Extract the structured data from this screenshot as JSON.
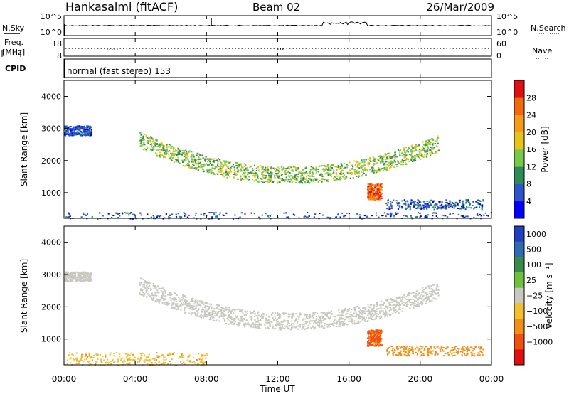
{
  "header": {
    "station": "Hankasalmi (fitACF)",
    "beam": "Beam 02",
    "date": "26/Mar/2009"
  },
  "noise_panel": {
    "left_label": "N.Sky",
    "right_label": "N.Search",
    "left_ticks": [
      "10^5",
      "10^0"
    ],
    "right_ticks": [
      "10^5",
      "10^0"
    ]
  },
  "freq_panel": {
    "left_label_1": "Freq.",
    "left_label_2": "[MHz]",
    "left_ticks": [
      "18",
      "8"
    ],
    "right_label": "Nave",
    "right_ticks": [
      "60",
      "0"
    ],
    "dotted_level": 12.3
  },
  "cpid_panel": {
    "label": "CPID",
    "text": "normal (fast stereo) 153"
  },
  "chart_data": [
    {
      "type": "heatmap",
      "name": "power",
      "ylabel": "Slant Range [km]",
      "xlabel": "",
      "yticks": [
        "1000",
        "2000",
        "3000",
        "4000"
      ],
      "ylim": [
        200,
        4500
      ],
      "xlim": [
        0,
        24
      ],
      "colorbar": {
        "label": "Power [dB]",
        "ticks": [
          "4",
          "8",
          "12",
          "16",
          "20",
          "24",
          "28"
        ],
        "colors": [
          "#0000ff",
          "#2b55c8",
          "#2e8b57",
          "#78c84a",
          "#e6c21a",
          "#f59a1a",
          "#f26a10",
          "#e01010"
        ]
      },
      "echo_features": [
        {
          "region": "main arc",
          "t_start": 4.2,
          "t_end": 21.0,
          "range_km": [
            1300,
            2600
          ],
          "level_db": 14
        },
        {
          "region": "far range",
          "t_start": 0.0,
          "t_end": 1.5,
          "range_km": [
            2800,
            3100
          ],
          "level_db": 6
        },
        {
          "region": "near range",
          "t_start": 0.0,
          "t_end": 24.0,
          "range_km": [
            200,
            400
          ],
          "level_db": 6
        },
        {
          "region": "patch",
          "t_start": 17.0,
          "t_end": 17.8,
          "range_km": [
            800,
            1300
          ],
          "level_db": 26
        },
        {
          "region": "tail",
          "t_start": 18.0,
          "t_end": 23.5,
          "range_km": [
            500,
            800
          ],
          "level_db": 6
        }
      ]
    },
    {
      "type": "heatmap",
      "name": "velocity",
      "ylabel": "Slant Range [km]",
      "xlabel": "Time UT",
      "yticks": [
        "1000",
        "2000",
        "3000",
        "4000"
      ],
      "ylim": [
        200,
        4500
      ],
      "xlim": [
        0,
        24
      ],
      "xticks": [
        "00:00",
        "04:00",
        "08:00",
        "12:00",
        "16:00",
        "20:00",
        "00:00"
      ],
      "colorbar": {
        "label": "Velocity [m s⁻¹]",
        "ticks": [
          "1000",
          "500",
          "100",
          "25",
          "−25",
          "−100",
          "−500",
          "−1000"
        ],
        "colors": [
          "#2040c0",
          "#2f6bb0",
          "#3a8a4a",
          "#70c040",
          "#c8c8c0",
          "#f0c030",
          "#f09018",
          "#f05010",
          "#e01010"
        ]
      },
      "echo_features": [
        {
          "region": "main arc",
          "t_start": 4.2,
          "t_end": 21.0,
          "range_km": [
            1300,
            2600
          ],
          "velocity_ms": 0
        },
        {
          "region": "far range",
          "t_start": 0.0,
          "t_end": 1.5,
          "range_km": [
            2800,
            3100
          ],
          "velocity_ms": 0
        },
        {
          "region": "patch",
          "t_start": 17.0,
          "t_end": 17.8,
          "range_km": [
            800,
            1300
          ],
          "velocity_ms": -400
        },
        {
          "region": "tail",
          "t_start": 18.0,
          "t_end": 23.5,
          "range_km": [
            500,
            800
          ],
          "velocity_ms": -80
        },
        {
          "region": "near range",
          "t_start": 0.0,
          "t_end": 8.0,
          "range_km": [
            200,
            600
          ],
          "velocity_ms": -50
        }
      ]
    }
  ]
}
